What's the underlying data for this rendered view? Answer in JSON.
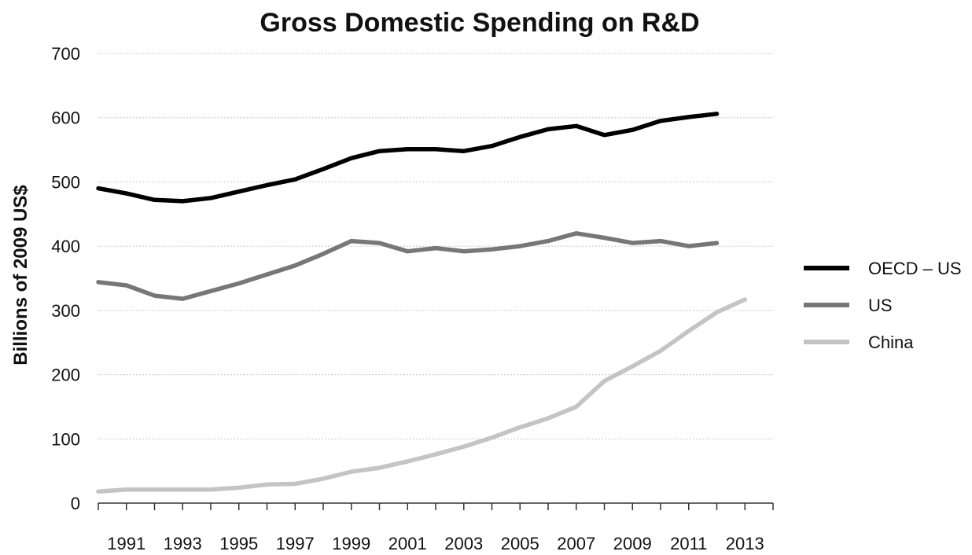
{
  "chart_data": {
    "type": "line",
    "title": "Gross Domestic Spending on R&D",
    "ylabel": "Billions of 2009 US$",
    "xlabel": "",
    "ylim": [
      0,
      700
    ],
    "yticks": [
      0,
      100,
      200,
      300,
      400,
      500,
      600,
      700
    ],
    "xlim": [
      1990,
      2014
    ],
    "xticks": [
      1991,
      1993,
      1995,
      1997,
      1999,
      2001,
      2003,
      2005,
      2007,
      2009,
      2011,
      2013
    ],
    "xtick_labels": [
      "1991",
      "1993",
      "1995",
      "1997",
      "1999",
      "2001",
      "2003",
      "2005",
      "2007",
      "2009",
      "2011",
      "2013"
    ],
    "grid": true,
    "legend_position": "right",
    "series": [
      {
        "name": "OECD – US",
        "color": "#000000",
        "x": [
          1990,
          1991,
          1992,
          1993,
          1994,
          1995,
          1996,
          1997,
          1998,
          1999,
          2000,
          2001,
          2002,
          2003,
          2004,
          2005,
          2006,
          2007,
          2008,
          2009,
          2010,
          2011,
          2012
        ],
        "values": [
          490,
          482,
          472,
          470,
          475,
          485,
          495,
          504,
          520,
          537,
          548,
          551,
          551,
          548,
          556,
          570,
          582,
          587,
          573,
          581,
          595,
          601,
          606
        ]
      },
      {
        "name": "US",
        "color": "#777777",
        "x": [
          1990,
          1991,
          1992,
          1993,
          1994,
          1995,
          1996,
          1997,
          1998,
          1999,
          2000,
          2001,
          2002,
          2003,
          2004,
          2005,
          2006,
          2007,
          2008,
          2009,
          2010,
          2011,
          2012
        ],
        "values": [
          344,
          339,
          323,
          318,
          330,
          342,
          356,
          370,
          388,
          408,
          405,
          392,
          397,
          392,
          395,
          400,
          408,
          420,
          413,
          405,
          408,
          400,
          405
        ]
      },
      {
        "name": "China",
        "color": "#c4c4c4",
        "x": [
          1990,
          1991,
          1992,
          1993,
          1994,
          1995,
          1996,
          1997,
          1998,
          1999,
          2000,
          2001,
          2002,
          2003,
          2004,
          2005,
          2006,
          2007,
          2008,
          2009,
          2010,
          2011,
          2012,
          2013
        ],
        "values": [
          18,
          21,
          21,
          21,
          21,
          24,
          29,
          30,
          38,
          49,
          55,
          65,
          76,
          88,
          102,
          118,
          132,
          150,
          190,
          213,
          237,
          268,
          297,
          317
        ]
      }
    ]
  }
}
